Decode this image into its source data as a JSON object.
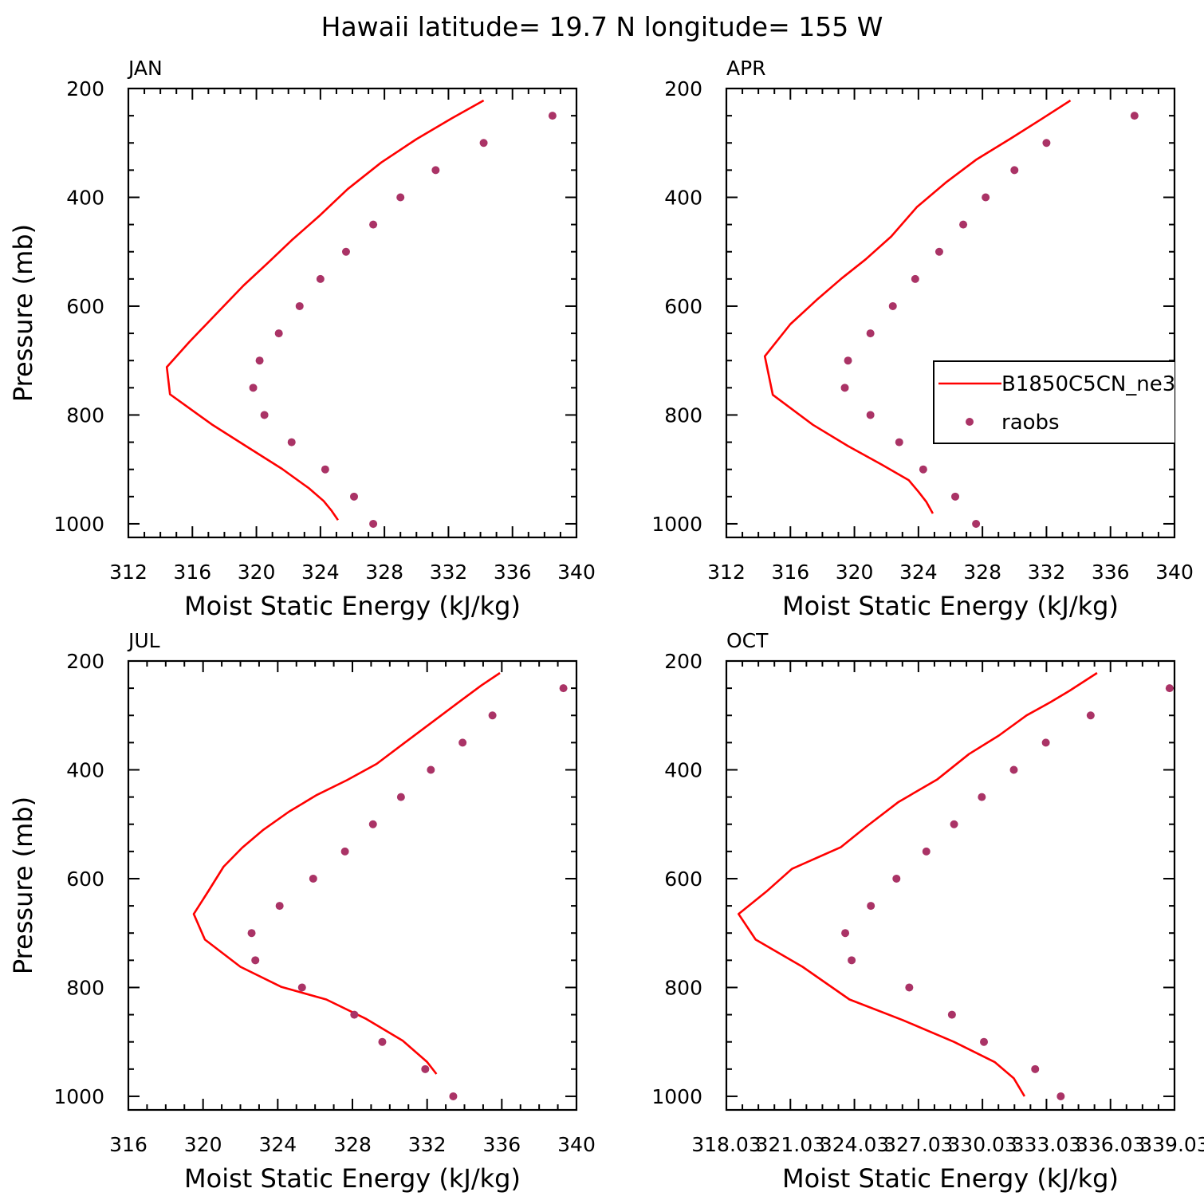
{
  "figure": {
    "title": "Hawaii  latitude= 19.7 N longitude= 155 W",
    "colors": {
      "model": "#ff0000",
      "obs": "#aa3366",
      "frame": "#000000"
    }
  },
  "legend": {
    "panel": "APR",
    "entries": [
      {
        "label": "B1850C5CN_ne3",
        "style": "line"
      },
      {
        "label": "raobs",
        "style": "marker"
      }
    ]
  },
  "chart_data": [
    {
      "type": "line",
      "panel_label": "JAN",
      "xlabel": "Moist Static Energy (kJ/kg)",
      "ylabel": "Pressure (mb)",
      "xlim": [
        312,
        340
      ],
      "ylim": [
        200,
        1025
      ],
      "y_inverted": true,
      "x_ticks": [
        312,
        316,
        320,
        324,
        328,
        332,
        336,
        340
      ],
      "x_tick_labels": [
        "312",
        "316",
        "320",
        "324",
        "328",
        "332",
        "336",
        "340"
      ],
      "y_ticks": [
        200,
        400,
        600,
        800,
        1000
      ],
      "y_tick_labels": [
        "200",
        "400",
        "600",
        "800",
        "1000"
      ],
      "series": [
        {
          "name": "B1850C5CN_ne3",
          "style": "line",
          "x": [
            334.2,
            332.2,
            330.0,
            327.8,
            325.7,
            323.9,
            322.2,
            320.7,
            319.2,
            317.3,
            315.8,
            314.4,
            314.6,
            317.2,
            319.5,
            321.6,
            323.3,
            324.2,
            324.7,
            325.1
          ],
          "y": [
            222,
            255,
            293,
            336,
            385,
            435,
            479,
            521,
            562,
            620,
            666,
            712,
            762,
            817,
            860,
            899,
            935,
            958,
            976,
            993
          ]
        },
        {
          "name": "raobs",
          "style": "marker",
          "x": [
            338.5,
            334.2,
            331.2,
            329.0,
            327.3,
            325.6,
            324.0,
            322.7,
            321.4,
            320.2,
            319.8,
            320.5,
            322.2,
            324.3,
            326.1,
            327.3
          ],
          "y": [
            250,
            300,
            350,
            400,
            450,
            500,
            550,
            600,
            650,
            700,
            750,
            800,
            850,
            900,
            950,
            1000
          ]
        }
      ]
    },
    {
      "type": "line",
      "panel_label": "APR",
      "xlabel": "Moist Static Energy (kJ/kg)",
      "ylabel": "",
      "xlim": [
        312,
        340
      ],
      "ylim": [
        200,
        1025
      ],
      "y_inverted": true,
      "x_ticks": [
        312,
        316,
        320,
        324,
        328,
        332,
        336,
        340
      ],
      "x_tick_labels": [
        "312",
        "316",
        "320",
        "324",
        "328",
        "332",
        "336",
        "340"
      ],
      "y_ticks": [
        200,
        400,
        600,
        800,
        1000
      ],
      "y_tick_labels": [
        "200",
        "400",
        "600",
        "800",
        "1000"
      ],
      "series": [
        {
          "name": "B1850C5CN_ne3",
          "style": "line",
          "x": [
            333.5,
            331.7,
            329.7,
            327.6,
            325.7,
            323.9,
            322.3,
            320.7,
            319.2,
            317.7,
            316.0,
            314.4,
            314.9,
            317.4,
            319.6,
            321.7,
            323.4,
            324.0,
            324.5,
            324.9
          ],
          "y": [
            222,
            256,
            293,
            331,
            373,
            418,
            472,
            514,
            549,
            587,
            633,
            692,
            763,
            818,
            857,
            891,
            920,
            941,
            960,
            981
          ]
        },
        {
          "name": "raobs",
          "style": "marker",
          "x": [
            337.5,
            332.0,
            330.0,
            328.2,
            326.8,
            325.3,
            323.8,
            322.4,
            321.0,
            319.6,
            319.4,
            321.0,
            322.8,
            324.3,
            326.3,
            327.6
          ],
          "y": [
            250,
            300,
            350,
            400,
            450,
            500,
            550,
            600,
            650,
            700,
            750,
            800,
            850,
            900,
            950,
            1000
          ]
        }
      ]
    },
    {
      "type": "line",
      "panel_label": "JUL",
      "xlabel": "Moist Static Energy (kJ/kg)",
      "ylabel": "Pressure (mb)",
      "xlim": [
        316,
        340
      ],
      "ylim": [
        200,
        1025
      ],
      "y_inverted": true,
      "x_ticks": [
        316,
        320,
        324,
        328,
        332,
        336,
        340
      ],
      "x_tick_labels": [
        "316",
        "320",
        "324",
        "328",
        "332",
        "336",
        "340"
      ],
      "y_ticks": [
        200,
        400,
        600,
        800,
        1000
      ],
      "y_tick_labels": [
        "200",
        "400",
        "600",
        "800",
        "1000"
      ],
      "series": [
        {
          "name": "B1850C5CN_ne3",
          "style": "line",
          "x": [
            335.9,
            334.9,
            333.8,
            332.4,
            330.8,
            329.3,
            327.7,
            326.1,
            324.6,
            323.2,
            322.1,
            321.1,
            320.3,
            319.5,
            320.1,
            322.0,
            324.2,
            326.6,
            328.7,
            330.7,
            332.0,
            332.5
          ],
          "y": [
            222,
            245,
            273,
            309,
            350,
            389,
            419,
            446,
            477,
            511,
            543,
            578,
            622,
            665,
            712,
            762,
            799,
            822,
            857,
            898,
            937,
            959
          ]
        },
        {
          "name": "raobs",
          "style": "marker",
          "x": [
            339.3,
            335.5,
            333.9,
            332.2,
            330.6,
            329.1,
            327.6,
            325.9,
            324.1,
            322.6,
            322.8,
            325.3,
            328.1,
            329.6,
            331.9,
            333.4
          ],
          "y": [
            250,
            300,
            350,
            400,
            450,
            500,
            550,
            600,
            650,
            700,
            750,
            800,
            850,
            900,
            950,
            1000
          ]
        }
      ]
    },
    {
      "type": "line",
      "panel_label": "OCT",
      "xlabel": "Moist Static Energy (kJ/kg)",
      "ylabel": "",
      "xlim": [
        318.03,
        339.03
      ],
      "ylim": [
        200,
        1025
      ],
      "y_inverted": true,
      "x_ticks": [
        318.03,
        321.03,
        324.03,
        327.03,
        330.03,
        333.03,
        336.03,
        339.03
      ],
      "x_tick_labels": [
        "318.03",
        "321.03",
        "324.03",
        "327.03",
        "330.03",
        "333.03",
        "336.03",
        "339.03"
      ],
      "y_ticks": [
        200,
        400,
        600,
        800,
        1000
      ],
      "y_tick_labels": [
        "200",
        "400",
        "600",
        "800",
        "1000"
      ],
      "series": [
        {
          "name": "B1850C5CN_ne3",
          "style": "line",
          "x": [
            335.4,
            334.1,
            333.2,
            332.1,
            330.8,
            329.4,
            327.9,
            326.1,
            324.6,
            323.4,
            321.1,
            319.9,
            318.6,
            319.4,
            321.6,
            323.8,
            326.3,
            328.7,
            330.6,
            331.5,
            332.0
          ],
          "y": [
            222,
            255,
            276,
            300,
            337,
            371,
            418,
            459,
            504,
            542,
            582,
            624,
            665,
            712,
            762,
            822,
            860,
            900,
            937,
            967,
            1000
          ]
        },
        {
          "name": "raobs",
          "style": "marker",
          "x": [
            338.8,
            335.1,
            333.0,
            331.5,
            330.0,
            328.7,
            327.4,
            326.0,
            324.8,
            323.6,
            323.9,
            326.6,
            328.6,
            330.1,
            332.5,
            333.7
          ],
          "y": [
            250,
            300,
            350,
            400,
            450,
            500,
            550,
            600,
            650,
            700,
            750,
            800,
            850,
            900,
            950,
            1000
          ]
        }
      ]
    }
  ]
}
